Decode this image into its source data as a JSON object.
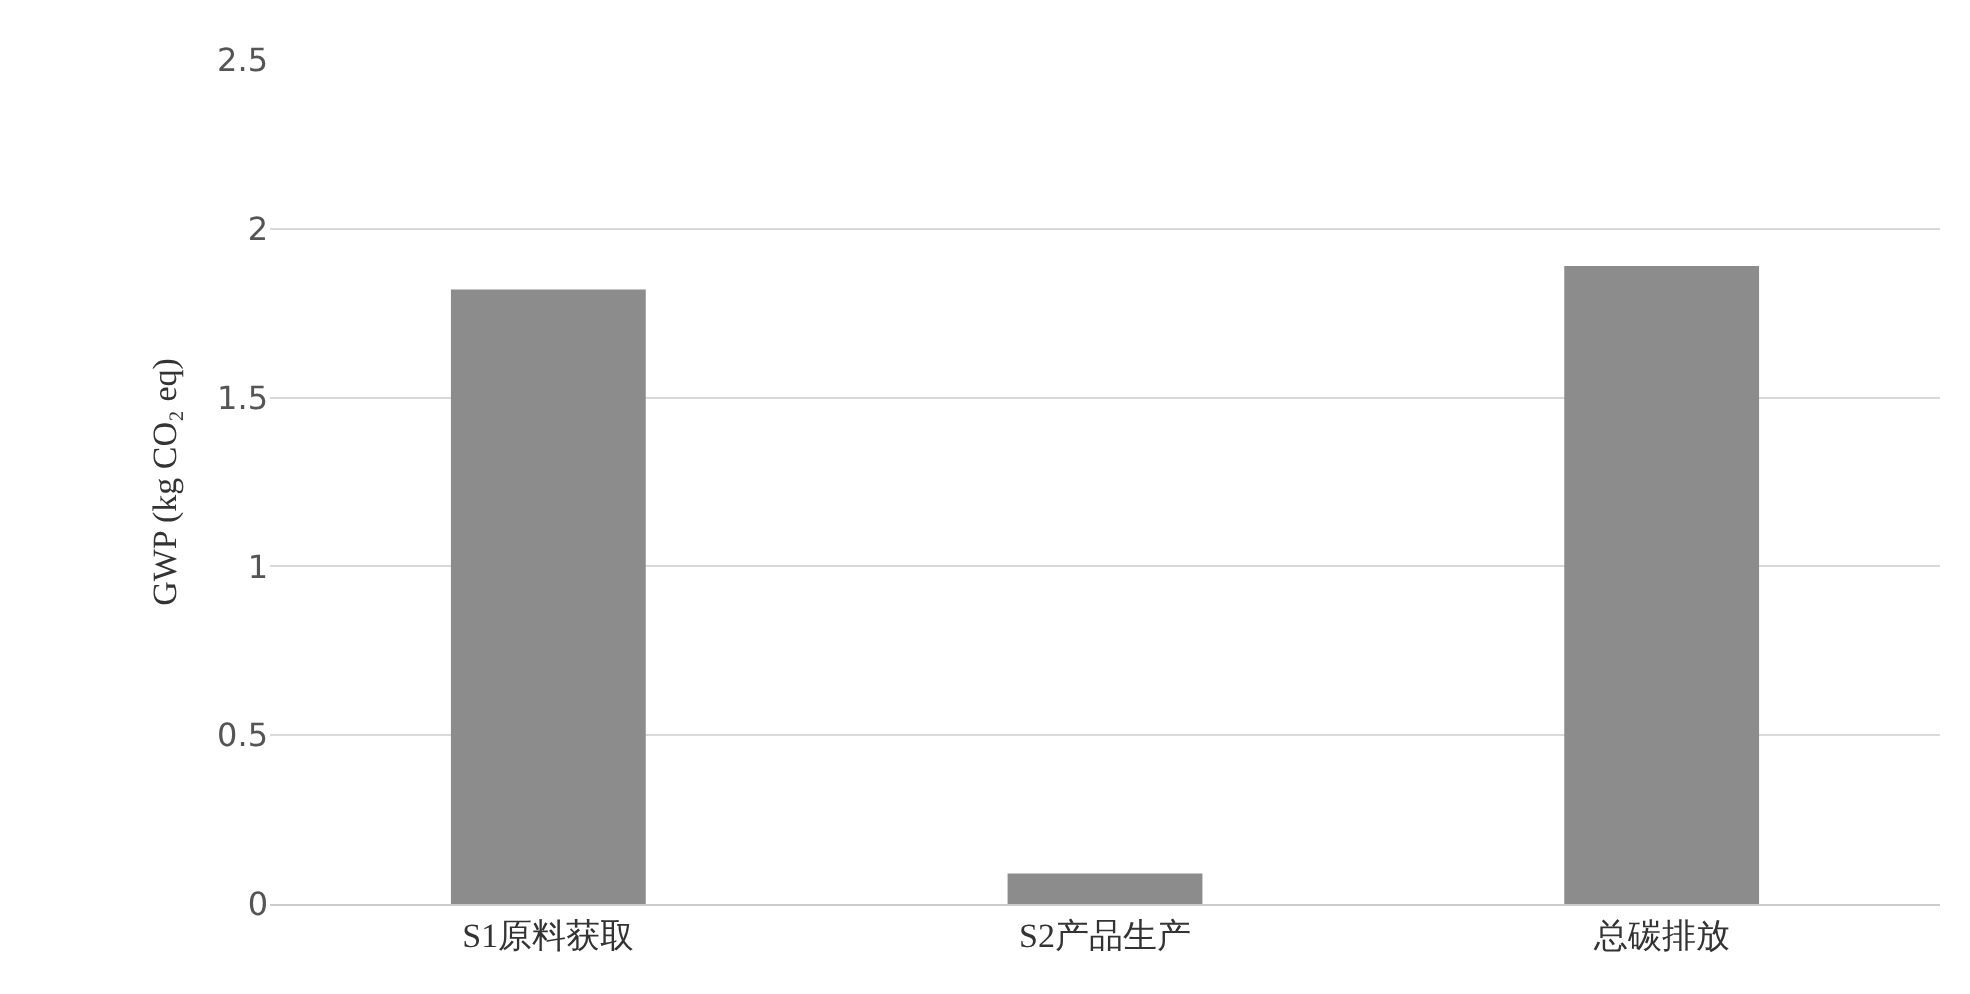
{
  "chart_data": {
    "type": "bar",
    "ylabel": "GWP (kg CO₂ eq)",
    "categories": [
      "S1原料获取",
      "S2产品生产",
      "总碳排放"
    ],
    "values": [
      1.82,
      0.09,
      1.89
    ],
    "color": "#8c8c8c",
    "ylim": [
      0,
      2.5
    ],
    "yticks": [
      0,
      {
        "value": 0.5,
        "label": "0.5"
      },
      1,
      {
        "value": 1.5,
        "label": "1.5"
      },
      2,
      {
        "value": 2.5,
        "label": "2.5"
      }
    ],
    "grid": "y"
  }
}
